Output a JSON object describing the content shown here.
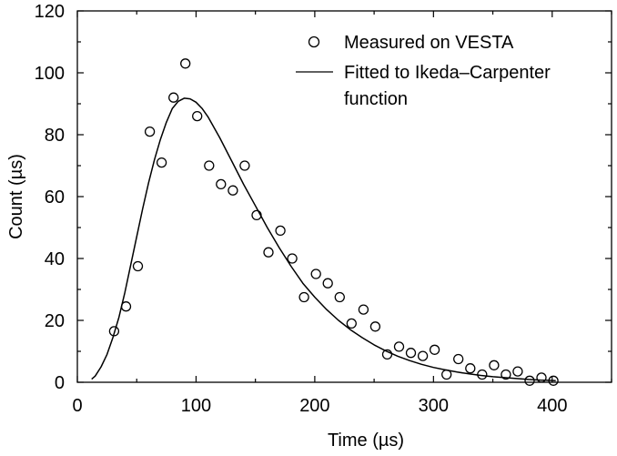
{
  "chart_data": {
    "type": "scatter",
    "title": "",
    "xlabel": "Time (µs)",
    "ylabel": "Count (µs)",
    "xlim": [
      0,
      450
    ],
    "ylim": [
      0,
      120
    ],
    "x_ticks": [
      0,
      100,
      200,
      300,
      400
    ],
    "y_ticks": [
      0,
      20,
      40,
      60,
      80,
      100,
      120
    ],
    "grid": false,
    "legend_position": "top-right",
    "series": [
      {
        "name": "Measured on VESTA",
        "kind": "markers",
        "marker": "open-circle",
        "color": "#000000",
        "x": [
          31,
          41,
          51,
          61,
          71,
          81,
          91,
          101,
          111,
          121,
          131,
          141,
          151,
          161,
          171,
          181,
          191,
          201,
          211,
          221,
          231,
          241,
          251,
          261,
          271,
          281,
          291,
          301,
          311,
          321,
          331,
          341,
          351,
          361,
          371,
          381,
          391,
          401
        ],
        "y": [
          16.5,
          24.5,
          37.5,
          81,
          71,
          92,
          103,
          86,
          70,
          64,
          62,
          70,
          54,
          42,
          49,
          40,
          27.5,
          35,
          32,
          27.5,
          19,
          23.5,
          18,
          9,
          11.5,
          9.5,
          8.5,
          10.5,
          2.5,
          7.5,
          4.5,
          2.5,
          5.5,
          2.5,
          3.5,
          0.5,
          1.5,
          0.5
        ]
      },
      {
        "name": "Fitted to Ikeda–Carpenter function",
        "legend_lines": [
          "Fitted to Ikeda–Carpenter",
          "function"
        ],
        "kind": "line",
        "color": "#000000",
        "x": [
          12,
          15,
          20,
          25,
          30,
          35,
          40,
          45,
          50,
          55,
          60,
          65,
          70,
          75,
          80,
          85,
          90,
          95,
          100,
          105,
          110,
          120,
          130,
          140,
          150,
          160,
          170,
          180,
          190,
          200,
          210,
          220,
          230,
          240,
          250,
          260,
          270,
          280,
          290,
          300,
          310,
          320,
          330,
          340,
          350,
          360,
          370,
          380,
          390,
          400,
          403
        ],
        "y": [
          1,
          2,
          5,
          9,
          14.5,
          21,
          29,
          38,
          47,
          56,
          64.5,
          72,
          78.5,
          84,
          88.5,
          90.8,
          91.8,
          91.6,
          90.5,
          88.5,
          85.8,
          79,
          71.5,
          64,
          57,
          50,
          43.5,
          37.5,
          32,
          27.5,
          23.5,
          20,
          17,
          14.4,
          12.1,
          10.1,
          8.4,
          7,
          5.8,
          4.8,
          4,
          3.3,
          2.7,
          2.2,
          1.8,
          1.5,
          1.2,
          0.9,
          0.7,
          0.6,
          0.5
        ]
      }
    ]
  }
}
